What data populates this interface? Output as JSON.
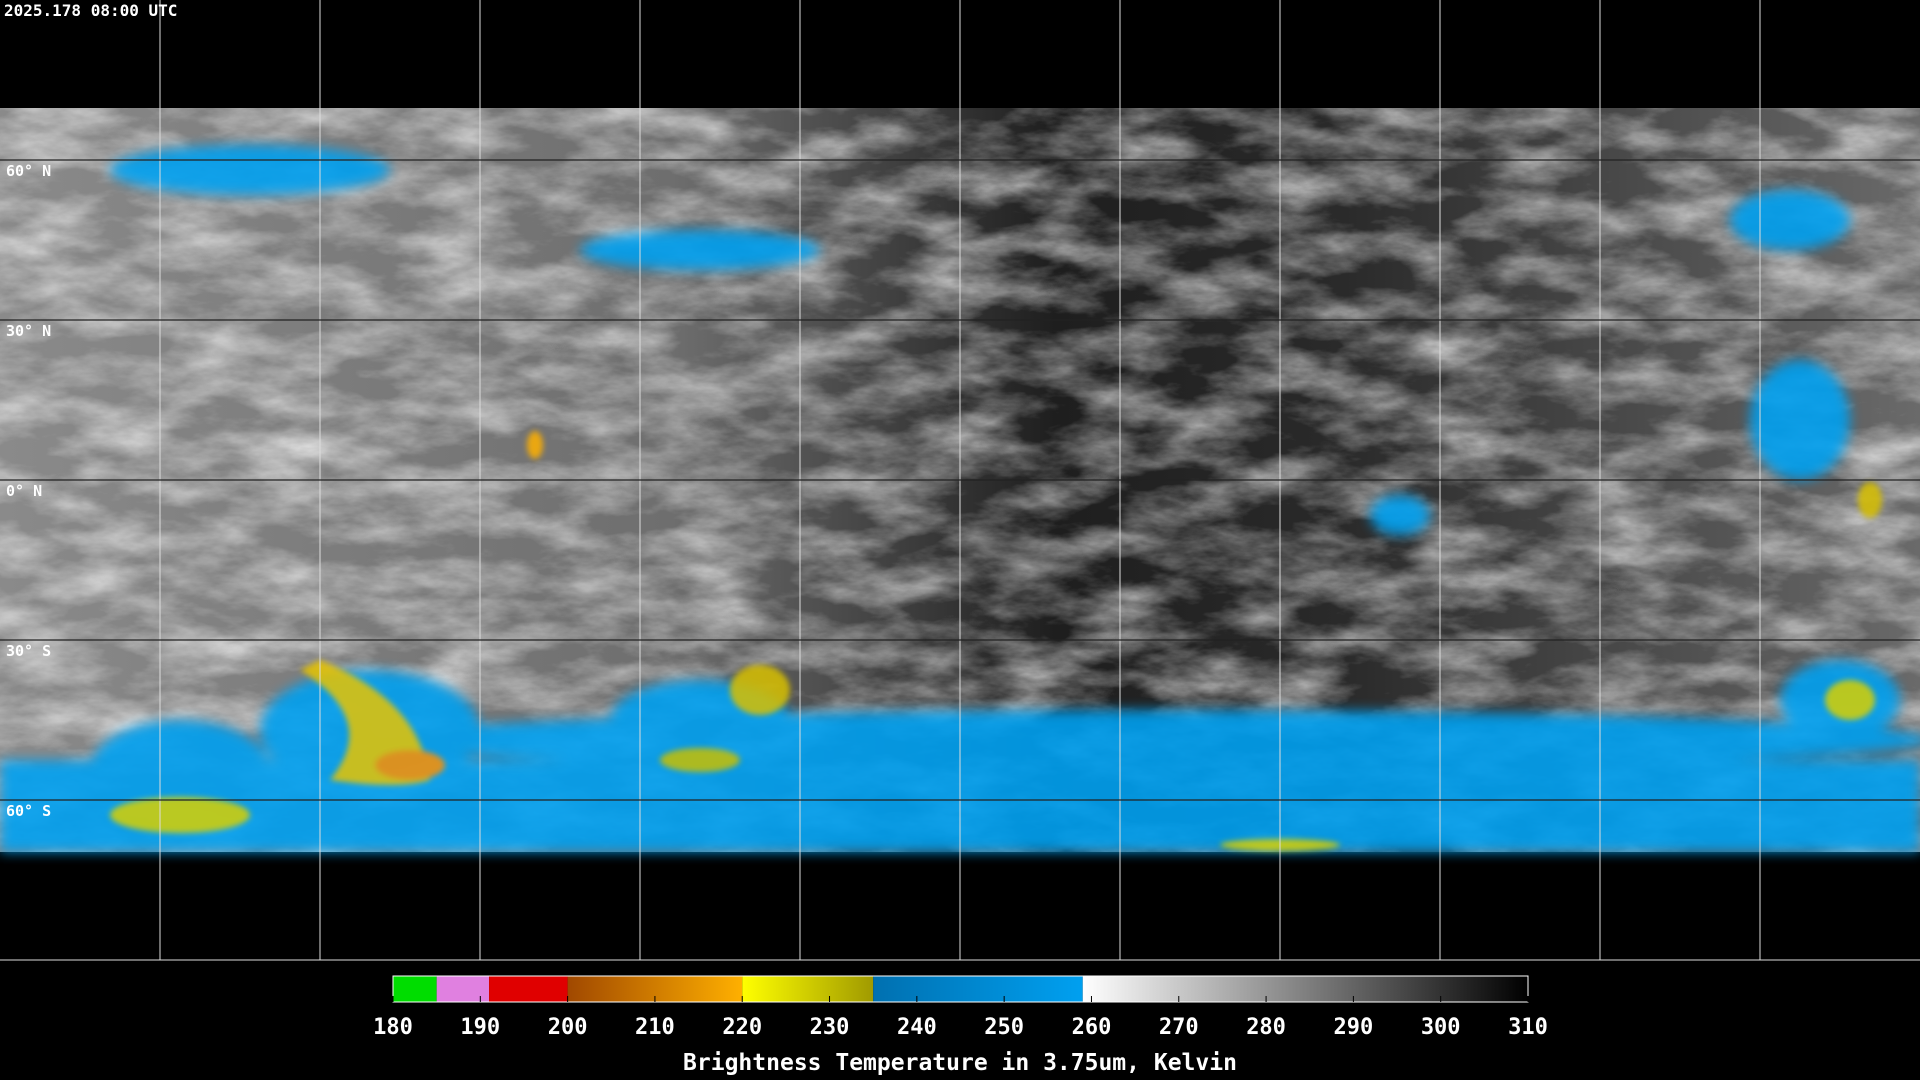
{
  "timestamp": "2025.178 08:00 UTC",
  "latitude_labels": [
    {
      "value": 60,
      "label": "60° N"
    },
    {
      "value": 30,
      "label": "30° N"
    },
    {
      "value": 0,
      "label": "0° N"
    },
    {
      "value": -30,
      "label": "30° S"
    },
    {
      "value": -60,
      "label": "60° S"
    }
  ],
  "colorbar": {
    "title": "Brightness Temperature in 3.75um, Kelvin",
    "range": [
      180,
      310
    ],
    "ticks": [
      180,
      190,
      200,
      210,
      220,
      230,
      240,
      250,
      260,
      270,
      280,
      290,
      300,
      310
    ],
    "segments": [
      {
        "from": 180,
        "to": 185,
        "color": "#00dd00",
        "color_end": "#00dd00"
      },
      {
        "from": 185,
        "to": 191,
        "color": "#e080e0",
        "color_end": "#e080e0"
      },
      {
        "from": 191,
        "to": 200,
        "color": "#e00000",
        "color_end": "#e00000"
      },
      {
        "from": 200,
        "to": 220,
        "color": "#a04800",
        "color_end": "#ffb000"
      },
      {
        "from": 220,
        "to": 235,
        "color": "#ffff00",
        "color_end": "#a09a00"
      },
      {
        "from": 235,
        "to": 259,
        "color": "#0070b0",
        "color_end": "#00a0f0"
      },
      {
        "from": 259,
        "to": 310,
        "color": "#ffffff",
        "color_end": "#000000"
      }
    ]
  }
}
